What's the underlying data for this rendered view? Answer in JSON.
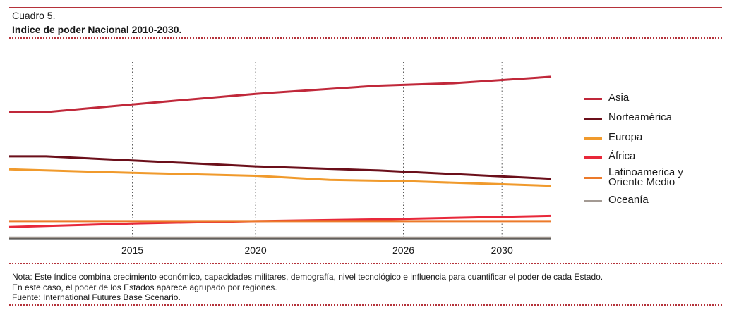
{
  "header": {
    "label": "Cuadro 5.",
    "title": "Indice de poder Nacional 2010-2030."
  },
  "notes": [
    "Nota: Este índice combina crecimiento económico, capacidades militares, demografía, nivel tecnológico e influencia para cuantificar el poder de cada Estado.",
    "En este caso, el poder de los Estados aparece agrupado por regiones.",
    "Fuente: International Futures Base Scenario."
  ],
  "colors": {
    "accent": "#b5323a"
  },
  "chart_data": {
    "type": "line",
    "title": "Indice de poder Nacional 2010-2030.",
    "xlabel": "",
    "ylabel": "",
    "xlim": [
      2010,
      2032
    ],
    "ylim": [
      0,
      30
    ],
    "x_ticks": [
      2015,
      2020,
      2026,
      2030
    ],
    "x_tick_labels": [
      "2015",
      "2020",
      "2026",
      "2030"
    ],
    "grid": "vertical dotted at x ticks",
    "legend_position": "right",
    "series": [
      {
        "name": "Asia",
        "color": "#c0283a",
        "points": [
          [
            2010,
            21.5
          ],
          [
            2011.5,
            21.5
          ],
          [
            2015,
            22.8
          ],
          [
            2020,
            24.6
          ],
          [
            2025,
            26.0
          ],
          [
            2028,
            26.4
          ],
          [
            2032,
            27.5
          ]
        ]
      },
      {
        "name": "Norteamérica",
        "color": "#6b0f1a",
        "points": [
          [
            2010,
            14.0
          ],
          [
            2011.5,
            14.0
          ],
          [
            2015,
            13.3
          ],
          [
            2020,
            12.3
          ],
          [
            2025,
            11.6
          ],
          [
            2032,
            10.2
          ]
        ]
      },
      {
        "name": "Europa",
        "color": "#f09a2c",
        "points": [
          [
            2010,
            11.8
          ],
          [
            2015,
            11.2
          ],
          [
            2020,
            10.7
          ],
          [
            2023,
            10.0
          ],
          [
            2026,
            9.8
          ],
          [
            2032,
            9.0
          ]
        ]
      },
      {
        "name": "África",
        "color": "#e8283a",
        "points": [
          [
            2010,
            2.0
          ],
          [
            2015,
            2.6
          ],
          [
            2020,
            3.0
          ],
          [
            2025,
            3.3
          ],
          [
            2032,
            3.9
          ]
        ]
      },
      {
        "name": "Latinoamerica y Oriente Medio",
        "color": "#ec7a2a",
        "points": [
          [
            2010,
            3.0
          ],
          [
            2032,
            3.0
          ]
        ]
      },
      {
        "name": "Oceanía",
        "color": "#a39a93",
        "points": [
          [
            2010,
            0.2
          ],
          [
            2032,
            0.2
          ]
        ]
      }
    ]
  }
}
